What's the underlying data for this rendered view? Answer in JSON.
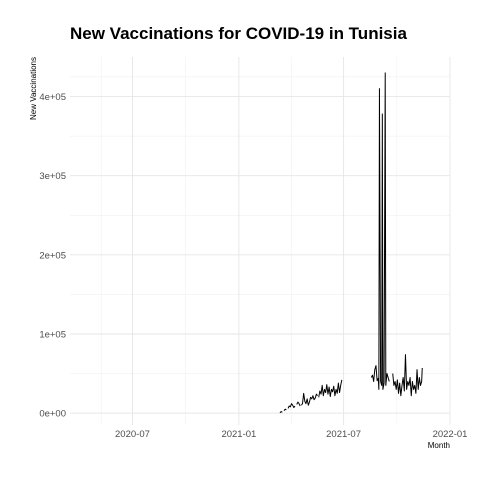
{
  "chart_data": {
    "type": "line",
    "title": "New Vaccinations for COVID-19 in Tunisia",
    "xlabel": "Month",
    "ylabel": "New Vaccinations",
    "x_tick_labels": [
      "2020-07",
      "2021-01",
      "2021-07",
      "2022-01"
    ],
    "y_tick_labels": [
      "0e+00",
      "1e+05",
      "2e+05",
      "3e+05",
      "4e+05"
    ],
    "x_ticks": [
      "2020-07-01",
      "2021-01-01",
      "2021-07-01",
      "2022-01-01"
    ],
    "y_ticks": [
      0,
      100000,
      200000,
      300000,
      400000
    ],
    "xlim": [
      "2020-03-15",
      "2022-01-01"
    ],
    "ylim": [
      -15000,
      450000
    ],
    "grid": true,
    "line_color": "#000000",
    "series": [
      {
        "segments": [
          [
            [
              "2021-03-13",
              500
            ],
            [
              "2021-03-15",
              2000
            ],
            [
              "2021-03-17",
              1000
            ]
          ],
          [
            [
              "2021-03-20",
              3000
            ],
            [
              "2021-03-22",
              5000
            ],
            [
              "2021-03-24",
              4000
            ]
          ],
          [
            [
              "2021-03-27",
              6000
            ],
            [
              "2021-03-29",
              9000
            ],
            [
              "2021-03-31",
              8000
            ],
            [
              "2021-04-02",
              12000
            ],
            [
              "2021-04-04",
              10000
            ],
            [
              "2021-04-06",
              7000
            ],
            [
              "2021-04-08",
              9000
            ]
          ],
          [
            [
              "2021-04-11",
              11000
            ],
            [
              "2021-04-13",
              14000
            ],
            [
              "2021-04-15",
              12000
            ],
            [
              "2021-04-17",
              9000
            ]
          ],
          [
            [
              "2021-04-19",
              10000
            ],
            [
              "2021-04-21",
              12000
            ],
            [
              "2021-04-23",
              25000
            ],
            [
              "2021-04-25",
              15000
            ],
            [
              "2021-04-27",
              12000
            ],
            [
              "2021-04-29",
              18000
            ],
            [
              "2021-05-01",
              10000
            ],
            [
              "2021-05-03",
              14000
            ],
            [
              "2021-05-05",
              20000
            ],
            [
              "2021-05-07",
              18000
            ],
            [
              "2021-05-09",
              22000
            ],
            [
              "2021-05-11",
              17000
            ],
            [
              "2021-05-13",
              19000
            ],
            [
              "2021-05-15",
              24000
            ],
            [
              "2021-05-17",
              22000
            ]
          ],
          [
            [
              "2021-05-19",
              20000
            ],
            [
              "2021-05-21",
              28000
            ],
            [
              "2021-05-23",
              24000
            ],
            [
              "2021-05-25",
              35000
            ],
            [
              "2021-05-27",
              22000
            ],
            [
              "2021-05-29",
              30000
            ],
            [
              "2021-05-31",
              26000
            ],
            [
              "2021-06-02",
              36000
            ],
            [
              "2021-06-04",
              24000
            ],
            [
              "2021-06-06",
              33000
            ],
            [
              "2021-06-08",
              21000
            ],
            [
              "2021-06-10",
              30000
            ],
            [
              "2021-06-12",
              27000
            ],
            [
              "2021-06-14",
              34000
            ],
            [
              "2021-06-16",
              22000
            ],
            [
              "2021-06-18",
              30000
            ],
            [
              "2021-06-20",
              25000
            ],
            [
              "2021-06-22",
              38000
            ],
            [
              "2021-06-24",
              26000
            ],
            [
              "2021-06-26",
              35000
            ],
            [
              "2021-06-28",
              42000
            ]
          ],
          [
            [
              "2021-08-18",
              45000
            ],
            [
              "2021-08-20",
              48000
            ],
            [
              "2021-08-22",
              40000
            ],
            [
              "2021-08-24",
              55000
            ],
            [
              "2021-08-26",
              60000
            ],
            [
              "2021-08-28",
              41000
            ],
            [
              "2021-08-30",
              44000
            ],
            [
              "2021-08-31",
              30000
            ],
            [
              "2021-09-01",
              410000
            ],
            [
              "2021-09-03",
              40000
            ],
            [
              "2021-09-05",
              35000
            ],
            [
              "2021-09-06",
              378000
            ],
            [
              "2021-09-07",
              30000
            ],
            [
              "2021-09-09",
              38000
            ],
            [
              "2021-09-11",
              430000
            ],
            [
              "2021-09-12",
              35000
            ],
            [
              "2021-09-14",
              50000
            ],
            [
              "2021-09-16",
              45000
            ],
            [
              "2021-09-18",
              40000
            ]
          ],
          [
            [
              "2021-09-24",
              50000
            ],
            [
              "2021-09-26",
              35000
            ],
            [
              "2021-09-28",
              40000
            ],
            [
              "2021-09-30",
              30000
            ],
            [
              "2021-10-02",
              42000
            ],
            [
              "2021-10-04",
              25000
            ],
            [
              "2021-10-06",
              38000
            ],
            [
              "2021-10-08",
              22000
            ],
            [
              "2021-10-10",
              35000
            ],
            [
              "2021-10-12",
              45000
            ],
            [
              "2021-10-14",
              28000
            ],
            [
              "2021-10-16",
              74000
            ],
            [
              "2021-10-18",
              30000
            ],
            [
              "2021-10-20",
              40000
            ],
            [
              "2021-10-22",
              35000
            ],
            [
              "2021-10-24",
              45000
            ],
            [
              "2021-10-26",
              22000
            ],
            [
              "2021-10-28",
              40000
            ],
            [
              "2021-10-30",
              30000
            ],
            [
              "2021-11-01",
              35000
            ],
            [
              "2021-11-03",
              25000
            ],
            [
              "2021-11-05",
              55000
            ],
            [
              "2021-11-07",
              30000
            ],
            [
              "2021-11-09",
              45000
            ],
            [
              "2021-11-11",
              35000
            ],
            [
              "2021-11-13",
              40000
            ],
            [
              "2021-11-14",
              57000
            ]
          ]
        ]
      }
    ]
  }
}
